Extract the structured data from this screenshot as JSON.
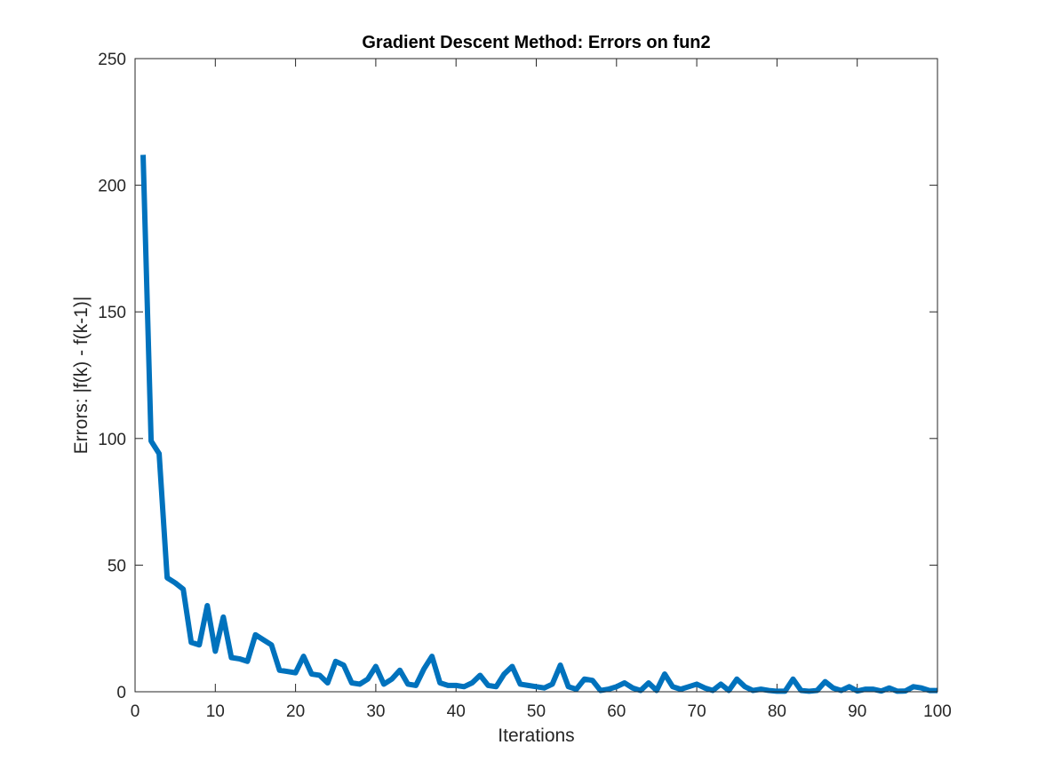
{
  "chart_data": {
    "type": "line",
    "title": "Gradient Descent Method: Errors on fun2",
    "xlabel": "Iterations",
    "ylabel": "Errors: |f(k) - f(k-1)|",
    "xlim": [
      0,
      100
    ],
    "ylim": [
      0,
      250
    ],
    "xticks": [
      0,
      10,
      20,
      30,
      40,
      50,
      60,
      70,
      80,
      90,
      100
    ],
    "xtick_labels": [
      "0",
      "10",
      "20",
      "30",
      "40",
      "50",
      "60",
      "70",
      "80",
      "90",
      "100"
    ],
    "yticks": [
      0,
      50,
      100,
      150,
      200,
      250
    ],
    "ytick_labels": [
      "0",
      "50",
      "100",
      "150",
      "200",
      "250"
    ],
    "grid": false,
    "line_color": "#0072BD",
    "series": [
      {
        "x": [
          1,
          2,
          3,
          4,
          5,
          6,
          7,
          8,
          9,
          10,
          11,
          12,
          13,
          14,
          15,
          16,
          17,
          18,
          19,
          20,
          21,
          22,
          23,
          24,
          25,
          26,
          27,
          28,
          29,
          30,
          31,
          32,
          33,
          34,
          35,
          36,
          37,
          38,
          39,
          40,
          41,
          42,
          43,
          44,
          45,
          46,
          47,
          48,
          49,
          50,
          51,
          52,
          53,
          54,
          55,
          56,
          57,
          58,
          59,
          60,
          61,
          62,
          63,
          64,
          65,
          66,
          67,
          68,
          69,
          70,
          71,
          72,
          73,
          74,
          75,
          76,
          77,
          78,
          79,
          80,
          81,
          82,
          83,
          84,
          85,
          86,
          87,
          88,
          89,
          90,
          91,
          92,
          93,
          94,
          95,
          96,
          97,
          98,
          99,
          100
        ],
        "y": [
          212,
          99,
          94,
          45,
          43,
          40.5,
          19.5,
          18.5,
          34,
          16,
          29.5,
          13.5,
          13,
          12,
          22.5,
          20.5,
          18.5,
          8.5,
          8,
          7.5,
          14,
          7,
          6.5,
          3.5,
          12,
          10.5,
          3.5,
          3,
          5,
          10,
          3,
          5,
          8.5,
          3,
          2.5,
          9,
          14,
          3.5,
          2.5,
          2.5,
          2,
          3.5,
          6.5,
          2.5,
          2,
          7,
          10,
          3,
          2.5,
          2,
          1.5,
          3,
          10.5,
          2,
          1,
          5,
          4.5,
          0.5,
          1,
          2,
          3.5,
          1.5,
          0.5,
          3.5,
          0.5,
          7,
          2,
          1,
          2,
          3,
          1.5,
          0.5,
          3,
          0.5,
          5,
          2,
          0.5,
          1,
          0.5,
          0.2,
          0.2,
          5,
          0.5,
          0.2,
          0.5,
          4,
          1.5,
          0.5,
          2,
          0.3,
          1,
          1,
          0.3,
          1.5,
          0.2,
          0.3,
          2,
          1.5,
          0.5,
          0.5
        ]
      }
    ]
  }
}
